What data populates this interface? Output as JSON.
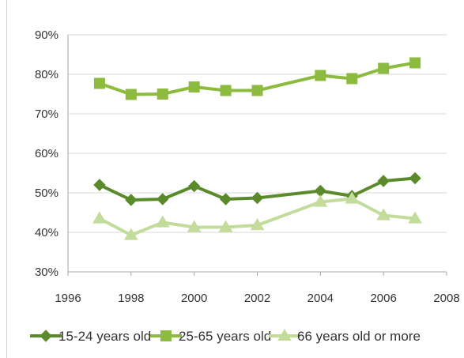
{
  "chart_data": {
    "type": "line",
    "title": "",
    "xlabel": "",
    "ylabel": "",
    "xlim": [
      1996,
      2008
    ],
    "ylim": [
      0.3,
      0.9
    ],
    "x_ticks": [
      1996,
      1998,
      2000,
      2002,
      2004,
      2006,
      2008
    ],
    "x_tick_labels": [
      "1996",
      "1998",
      "2000",
      "2002",
      "2004",
      "2006",
      "2008"
    ],
    "y_ticks": [
      0.3,
      0.4,
      0.5,
      0.6,
      0.7,
      0.8,
      0.9
    ],
    "y_tick_labels": [
      "30%",
      "40%",
      "50%",
      "60%",
      "70%",
      "80%",
      "90%"
    ],
    "grid": "horizontal",
    "legend_position": "bottom",
    "series": [
      {
        "name": "15-24 years old",
        "marker": "diamond",
        "color": "#5a8a2a",
        "x": [
          1997,
          1998,
          1999,
          2000,
          2001,
          2002,
          2004,
          2005,
          2006,
          2007
        ],
        "values": [
          0.52,
          0.482,
          0.484,
          0.517,
          0.484,
          0.487,
          0.505,
          0.492,
          0.53,
          0.537
        ]
      },
      {
        "name": "25-65 years old",
        "marker": "square",
        "color": "#8cbb3f",
        "x": [
          1997,
          1998,
          1999,
          2000,
          2001,
          2002,
          2004,
          2005,
          2006,
          2007
        ],
        "values": [
          0.777,
          0.749,
          0.75,
          0.768,
          0.759,
          0.759,
          0.797,
          0.789,
          0.815,
          0.829
        ]
      },
      {
        "name": "66 years old or more",
        "marker": "triangle",
        "color": "#c3dc9b",
        "x": [
          1997,
          1998,
          1999,
          2000,
          2001,
          2002,
          2004,
          2005,
          2006,
          2007
        ],
        "values": [
          0.435,
          0.393,
          0.425,
          0.413,
          0.413,
          0.418,
          0.477,
          0.485,
          0.443,
          0.435
        ]
      }
    ]
  }
}
